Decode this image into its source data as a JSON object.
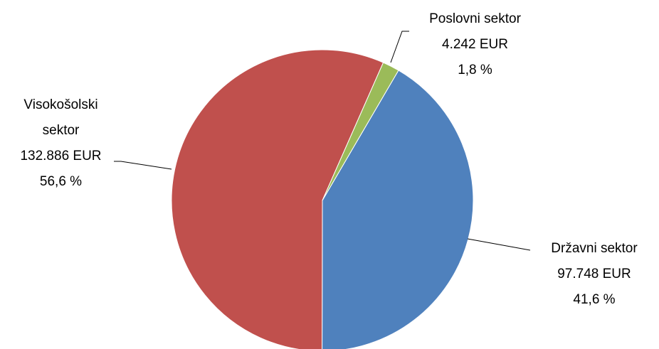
{
  "chart_data": {
    "type": "pie",
    "categories": [
      "Državni sektor",
      "Visokošolski sektor",
      "Poslovni sektor"
    ],
    "values": [
      97748,
      132886,
      4242
    ],
    "value_labels": [
      "97.748 EUR",
      "132.886 EUR",
      "4.242 EUR"
    ],
    "percents": [
      41.6,
      56.6,
      1.8
    ],
    "percent_labels": [
      "41,6 %",
      "56,6 %",
      "1,8 %"
    ],
    "colors": [
      "#4f81bd",
      "#c0504d",
      "#9bbb59"
    ]
  }
}
